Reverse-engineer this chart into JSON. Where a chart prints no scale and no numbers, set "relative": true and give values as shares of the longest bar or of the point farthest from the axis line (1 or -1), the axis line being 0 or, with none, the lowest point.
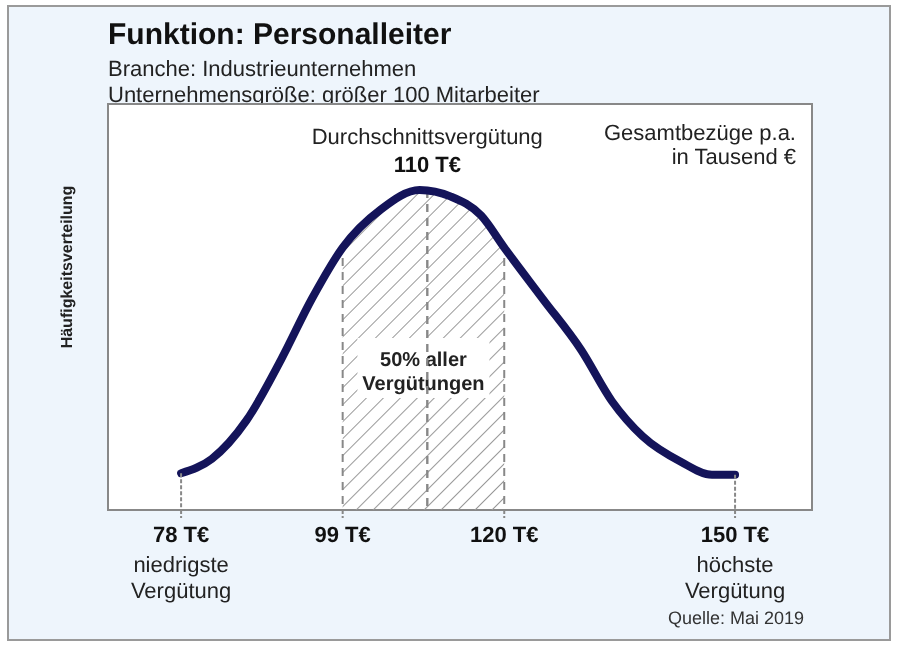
{
  "chart_data": {
    "type": "line",
    "title": "Funktion: Personalleiter",
    "subtitle": "Branche: Industrieunternehmen\nUnternehmensgröße: größer 100 Mitarbeiter",
    "ylabel": "Häufigkeitsverteilung",
    "relative": true,
    "tick_labels": "x",
    "line_style": "solid",
    "x": [
      78,
      82,
      86.5,
      91,
      95,
      99,
      104,
      109,
      113,
      117,
      120,
      125,
      130,
      134,
      138,
      143,
      147,
      150
    ],
    "series": [
      {
        "color": "#14145a",
        "values": [
          0.115,
          0.16,
          0.28,
          0.47,
          0.66,
          0.82,
          0.94,
          1,
          0.98,
          0.92,
          0.82,
          0.66,
          0.5,
          0.34,
          0.23,
          0.15,
          0.11,
          0.11
        ]
      }
    ],
    "xlim": [
      68.5,
      160
    ],
    "xticks": [
      {
        "value": 78,
        "label": "78 T€"
      },
      {
        "value": 99,
        "label": "99 T€"
      },
      {
        "value": 120,
        "label": "120 T€"
      },
      {
        "value": 150,
        "label": "150 T€"
      }
    ],
    "ref_lines": [
      {
        "axis": "x",
        "value": 110,
        "label": "Durchschnittsvergütung",
        "line_style": "dashed",
        "color": "#888888"
      }
    ],
    "bands": [
      {
        "axis": "x",
        "from": 99,
        "to": 120,
        "label": "50% aller Vergütungen",
        "color": "#999999"
      }
    ],
    "annotations": [
      {
        "text": "110 T€",
        "x": 110,
        "y": 1
      },
      "niedrigste Vergütung",
      "höchste Vergütung",
      "Gesamtbezüge p.a.\nin Tausend €",
      "Quelle: Mai 2019"
    ]
  }
}
